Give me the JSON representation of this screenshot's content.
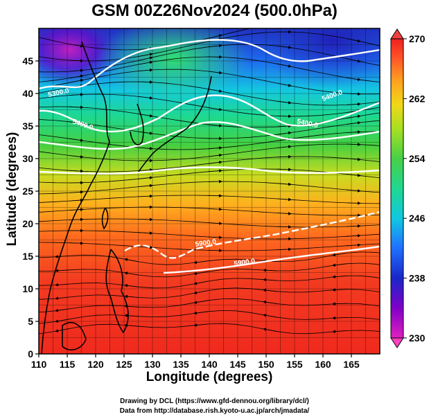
{
  "title": "GSM 00Z26Nov2024 (500.0hPa)",
  "xlabel": "Longitude (degrees)",
  "ylabel": "Latitude  (degrees)",
  "credit_line1": "Drawing by DCL (https://www.gfd-dennou.org/library/dcl/)",
  "credit_line2": "Data from http://database.rish.kyoto-u.ac.jp/arch/jmadata/",
  "map": {
    "lon_range": [
      110,
      170
    ],
    "lat_range": [
      0,
      50
    ],
    "lon_ticks": [
      "110",
      "115",
      "120",
      "125",
      "130",
      "135",
      "140",
      "145",
      "150",
      "155",
      "160",
      "165"
    ],
    "lat_ticks": [
      "0",
      "5",
      "10",
      "15",
      "20",
      "25",
      "30",
      "35",
      "40",
      "45"
    ],
    "grid": true
  },
  "colorbar": {
    "min": 230,
    "max": 270,
    "ticks": [
      "230",
      "238",
      "246",
      "254",
      "262",
      "270"
    ],
    "colors": [
      "#e020c0",
      "#8000c8",
      "#1828c8",
      "#2070ff",
      "#10c8e0",
      "#20d890",
      "#48d048",
      "#a8e020",
      "#f0d818",
      "#ffa020",
      "#ff5028",
      "#f02020"
    ]
  },
  "contour_labels": [
    "5300.0",
    "5400.0",
    "5400.0",
    "5400.0",
    "5900.0",
    "5900.0"
  ]
}
